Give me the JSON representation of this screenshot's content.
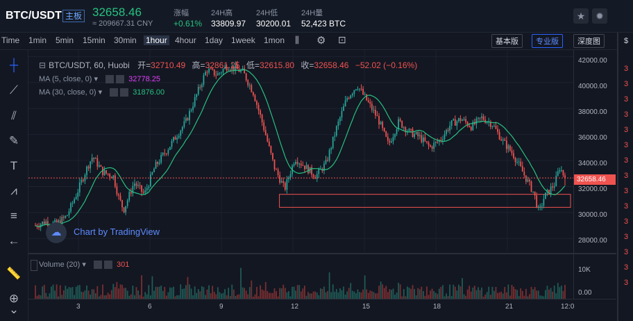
{
  "header": {
    "pair": "BTC/USDT",
    "badge": "主板",
    "price": "32658.46",
    "cny": "≈ 209667.31 CNY",
    "stats": [
      {
        "label": "涨幅",
        "value": "+0.61%",
        "color": "#26c281"
      },
      {
        "label": "24H高",
        "value": "33809.97",
        "color": "#ffffff"
      },
      {
        "label": "24H低",
        "value": "30200.01",
        "color": "#ffffff"
      },
      {
        "label": "24H量",
        "value": "52,423 BTC",
        "color": "#ffffff"
      }
    ],
    "icons": [
      "star-icon",
      "settings-icon"
    ]
  },
  "toolbar": {
    "timeframes": [
      "Time",
      "1min",
      "5min",
      "15min",
      "30min",
      "1hour",
      "4hour",
      "1day",
      "1week",
      "1mon"
    ],
    "active": "1hour",
    "buttons": [
      "基本版",
      "专业版",
      "深度图"
    ],
    "selected_button": "专业版",
    "icons": [
      "candle-style-icon",
      "settings-icon",
      "screenshot-icon"
    ]
  },
  "legend": {
    "symbol": "BTC/USDT, 60, Huobi",
    "open_label": "开=",
    "open": "32710.49",
    "high_label": "高=",
    "high": "32861.25",
    "low_label": "低=",
    "low": "32615.80",
    "close_label": "收=",
    "close": "32658.46",
    "change": "−52.02 (−0.16%)",
    "ma5_label": "MA (5, close, 0)",
    "ma5_value": "32778.25",
    "ma30_label": "MA (30, close, 0)",
    "ma30_value": "31876.00",
    "volume_label": "Volume (20)",
    "volume_value": "301",
    "watermark": "Chart by TradingView"
  },
  "chart_data": {
    "type": "candlestick",
    "x_ticks": [
      "3",
      "6",
      "9",
      "12",
      "15",
      "18",
      "21",
      "12:0"
    ],
    "y_ticks": [
      "42000.00",
      "40000.00",
      "38000.00",
      "36000.00",
      "34000.00",
      "32000.00",
      "30000.00",
      "28000.00"
    ],
    "volume_ticks": [
      "10K",
      "0.00"
    ],
    "ylim": [
      27000,
      42500
    ],
    "last_price_label": "32658.46",
    "last_price": 32658.46,
    "price_path": [
      {
        "t": 0,
        "p": 29000
      },
      {
        "t": 2,
        "p": 29300
      },
      {
        "t": 4,
        "p": 29100
      },
      {
        "t": 6,
        "p": 29700
      },
      {
        "t": 8,
        "p": 31500
      },
      {
        "t": 10,
        "p": 33500
      },
      {
        "t": 11,
        "p": 34300
      },
      {
        "t": 13,
        "p": 33100
      },
      {
        "t": 15,
        "p": 32800
      },
      {
        "t": 16,
        "p": 31200
      },
      {
        "t": 17,
        "p": 30200
      },
      {
        "t": 19,
        "p": 32300
      },
      {
        "t": 21,
        "p": 31400
      },
      {
        "t": 23,
        "p": 33500
      },
      {
        "t": 26,
        "p": 35200
      },
      {
        "t": 29,
        "p": 37000
      },
      {
        "t": 31,
        "p": 39000
      },
      {
        "t": 33,
        "p": 41000
      },
      {
        "t": 35,
        "p": 40600
      },
      {
        "t": 37,
        "p": 41300
      },
      {
        "t": 40,
        "p": 40800
      },
      {
        "t": 42,
        "p": 39200
      },
      {
        "t": 44,
        "p": 36500
      },
      {
        "t": 46,
        "p": 33500
      },
      {
        "t": 48,
        "p": 31800
      },
      {
        "t": 50,
        "p": 34200
      },
      {
        "t": 52,
        "p": 33500
      },
      {
        "t": 54,
        "p": 32800
      },
      {
        "t": 56,
        "p": 33800
      },
      {
        "t": 58,
        "p": 36500
      },
      {
        "t": 60,
        "p": 38800
      },
      {
        "t": 62,
        "p": 39800
      },
      {
        "t": 64,
        "p": 38500
      },
      {
        "t": 66,
        "p": 37200
      },
      {
        "t": 68,
        "p": 35200
      },
      {
        "t": 70,
        "p": 37000
      },
      {
        "t": 72,
        "p": 36200
      },
      {
        "t": 74,
        "p": 35800
      },
      {
        "t": 76,
        "p": 35000
      },
      {
        "t": 78,
        "p": 35600
      },
      {
        "t": 80,
        "p": 36800
      },
      {
        "t": 82,
        "p": 37200
      },
      {
        "t": 84,
        "p": 36600
      },
      {
        "t": 86,
        "p": 37300
      },
      {
        "t": 88,
        "p": 36800
      },
      {
        "t": 90,
        "p": 35500
      },
      {
        "t": 92,
        "p": 34500
      },
      {
        "t": 94,
        "p": 33000
      },
      {
        "t": 96,
        "p": 31500
      },
      {
        "t": 97,
        "p": 30000
      },
      {
        "t": 98,
        "p": 31200
      },
      {
        "t": 100,
        "p": 32200
      },
      {
        "t": 101,
        "p": 33500
      },
      {
        "t": 102,
        "p": 32658
      }
    ],
    "support_box": {
      "p_low": 30400,
      "p_high": 31400,
      "t_start": 47,
      "t_end": 102
    }
  },
  "right_strip_char": "3",
  "colors": {
    "up": "#26a69a",
    "down": "#ef5350",
    "ma30": "#26c281",
    "ma5": "#ff5252",
    "accent": "#2962ff"
  }
}
